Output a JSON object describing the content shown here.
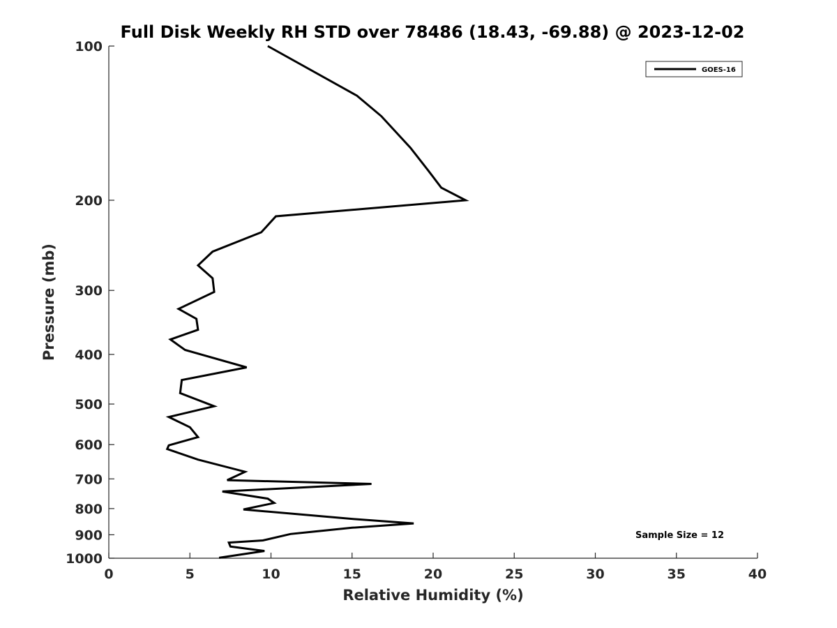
{
  "chart_data": {
    "type": "line",
    "title": "Full Disk Weekly RH STD over 78486 (18.43, -69.88) @ 2023-12-02",
    "xlabel": "Relative Humidity (%)",
    "ylabel": "Pressure (mb)",
    "xlim": [
      0,
      40
    ],
    "ylim": [
      1000,
      100
    ],
    "yscale": "log",
    "y_reversed": true,
    "xticks": [
      0,
      5,
      10,
      15,
      20,
      25,
      30,
      35,
      40
    ],
    "xtick_labels": [
      "0",
      "5",
      "10",
      "15",
      "20",
      "25",
      "30",
      "35",
      "40"
    ],
    "yticks": [
      100,
      200,
      300,
      400,
      500,
      600,
      700,
      800,
      900,
      1000
    ],
    "ytick_labels": [
      "100",
      "200",
      "300",
      "400",
      "500",
      "600",
      "700",
      "800",
      "900",
      "1000"
    ],
    "grid": false,
    "legend_position": "top-right",
    "series": [
      {
        "name": "GOES-16",
        "color": "#000000",
        "points": [
          [
            9.8,
            100
          ],
          [
            15.3,
            125
          ],
          [
            16.8,
            137
          ],
          [
            18.6,
            158
          ],
          [
            19.7,
            175
          ],
          [
            20.5,
            189
          ],
          [
            22.0,
            200
          ],
          [
            10.3,
            215
          ],
          [
            9.4,
            231
          ],
          [
            6.4,
            252
          ],
          [
            5.5,
            268
          ],
          [
            6.4,
            284
          ],
          [
            6.5,
            302
          ],
          [
            4.3,
            326
          ],
          [
            5.4,
            341
          ],
          [
            5.5,
            358
          ],
          [
            3.8,
            374
          ],
          [
            4.7,
            392
          ],
          [
            8.5,
            424
          ],
          [
            4.5,
            449
          ],
          [
            4.4,
            476
          ],
          [
            6.5,
            505
          ],
          [
            3.7,
            530
          ],
          [
            5.0,
            555
          ],
          [
            5.5,
            580
          ],
          [
            3.7,
            602
          ],
          [
            3.6,
            612
          ],
          [
            5.5,
            642
          ],
          [
            8.4,
            678
          ],
          [
            7.3,
            704
          ],
          [
            16.2,
            716
          ],
          [
            7.0,
            741
          ],
          [
            9.8,
            765
          ],
          [
            10.2,
            780
          ],
          [
            8.3,
            803
          ],
          [
            15.2,
            839
          ],
          [
            18.8,
            855
          ],
          [
            15.0,
            872
          ],
          [
            11.2,
            897
          ],
          [
            9.5,
            923
          ],
          [
            7.4,
            932
          ],
          [
            7.5,
            949
          ],
          [
            9.6,
            968
          ],
          [
            6.8,
            998
          ]
        ]
      }
    ],
    "annotations": [
      "Sample Size = 12"
    ]
  }
}
